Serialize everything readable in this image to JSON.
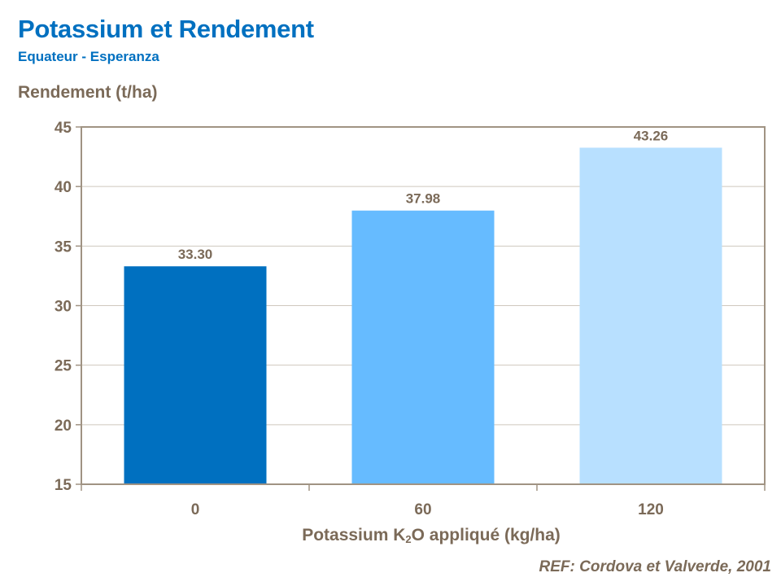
{
  "chart_data": {
    "type": "bar",
    "title": "Potassium et Rendement",
    "subtitle": "Equateur - Esperanza",
    "ylabel": "Rendement (t/ha)",
    "xlabel": "Potassium K2O appliqué (kg/ha)",
    "xlabel_parts": [
      "Potassium K",
      "2",
      "O appliqué (kg/ha)"
    ],
    "categories": [
      "0",
      "60",
      "120"
    ],
    "values": [
      33.3,
      37.98,
      43.26
    ],
    "data_labels": [
      "33.30",
      "37.98",
      "43.26"
    ],
    "bar_colors": [
      "#0070C0",
      "#66BBFF",
      "#B8E0FF"
    ],
    "ylim": [
      15,
      45
    ],
    "yticks": [
      15,
      20,
      25,
      30,
      35,
      40,
      45
    ],
    "grid": true,
    "legend": "none",
    "reference": "REF: Cordova et Valverde, 2001",
    "colors": {
      "title": "#0070C0",
      "text": "#7B6A58",
      "axis": "#A09383",
      "grid": "#CFC8BE"
    }
  }
}
